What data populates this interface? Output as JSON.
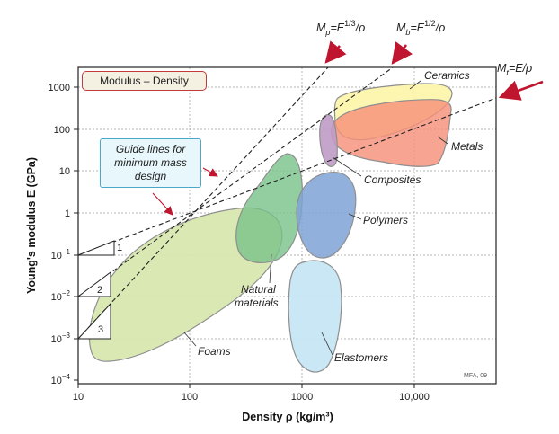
{
  "chart_data": {
    "type": "bubble-chart",
    "scale": "log-log",
    "xlabel": "Density ρ (kg/m³)",
    "ylabel": "Young's modulus E (GPa)",
    "xlim": [
      10,
      50000
    ],
    "ylim": [
      0.0001,
      3000
    ],
    "grid": true,
    "x_ticks": [
      {
        "value": 10,
        "label": "10"
      },
      {
        "value": 100,
        "label": "100"
      },
      {
        "value": 1000,
        "label": "1000"
      },
      {
        "value": 10000,
        "label": "10,000"
      }
    ],
    "y_ticks": [
      {
        "value": 0.0001,
        "base": "10",
        "exp": "−4"
      },
      {
        "value": 0.001,
        "base": "10",
        "exp": "−3"
      },
      {
        "value": 0.01,
        "base": "10",
        "exp": "−2"
      },
      {
        "value": 0.1,
        "base": "10",
        "exp": "−1"
      },
      {
        "value": 1,
        "base": "1",
        "exp": ""
      },
      {
        "value": 10,
        "base": "10",
        "exp": ""
      },
      {
        "value": 100,
        "base": "100",
        "exp": ""
      },
      {
        "value": 1000,
        "base": "1000",
        "exp": ""
      }
    ],
    "legend_title": "Modulus – Density",
    "material_families": [
      {
        "name": "Ceramics",
        "color": "#fdf5a8",
        "density_range": [
          2000,
          40000
        ],
        "modulus_range": [
          40,
          1000
        ]
      },
      {
        "name": "Metals",
        "color": "#f5907a",
        "density_range": [
          1700,
          40000
        ],
        "modulus_range": [
          5,
          600
        ]
      },
      {
        "name": "Composites",
        "color": "#c09bc8",
        "density_range": [
          1500,
          2200
        ],
        "modulus_range": [
          10,
          300
        ]
      },
      {
        "name": "Polymers",
        "color": "#7ea3d6",
        "density_range": [
          850,
          2300
        ],
        "modulus_range": [
          0.15,
          6
        ]
      },
      {
        "name": "Natural materials",
        "color": "#78c28a",
        "density_range": [
          350,
          1600
        ],
        "modulus_range": [
          0.3,
          30
        ]
      },
      {
        "name": "Elastomers",
        "color": "#c7e6f4",
        "density_range": [
          850,
          2000
        ],
        "modulus_range": [
          0.00015,
          0.12
        ]
      },
      {
        "name": "Foams",
        "color": "#d8e8b0",
        "density_range": [
          12,
          900
        ],
        "modulus_range": [
          0.0005,
          1.5
        ]
      }
    ],
    "guide_lines": [
      {
        "label": "M_p = E^(1/3)/ρ",
        "slope": 3
      },
      {
        "label": "M_b = E^(1/2)/ρ",
        "slope": 2
      },
      {
        "label": "M_t = E/ρ",
        "slope": 1
      }
    ],
    "slope_markers": [
      "1",
      "2",
      "3"
    ],
    "annotation": "Guide lines for minimum mass design",
    "credit": "MFA, 09"
  },
  "labels": {
    "ceramics": "Ceramics",
    "metals": "Metals",
    "composites": "Composites",
    "polymers": "Polymers",
    "natural_1": "Natural",
    "natural_2": "materials",
    "elastomers": "Elastomers",
    "foams": "Foams"
  },
  "equations": {
    "mp": {
      "sym": "M",
      "sub": "p",
      "eq": "=E",
      "sup": "1/3",
      "tail": "/ρ"
    },
    "mb": {
      "sym": "M",
      "sub": "b",
      "eq": "=E",
      "sup": "1/2",
      "tail": "/ρ"
    },
    "mt": {
      "sym": "M",
      "sub": "t",
      "eq": "=E/ρ"
    }
  },
  "note": {
    "line1": "Guide lines for",
    "line2": "minimum mass",
    "line3": "design"
  },
  "colors": {
    "arrow": "#c0152f",
    "grid": "#9a9a9a",
    "note_border": "#4aa8c9",
    "legend_border": "#c43a3a"
  }
}
